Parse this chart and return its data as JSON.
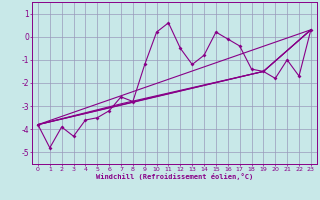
{
  "bg_color": "#c8e8e8",
  "line_color": "#880088",
  "grid_color": "#9999bb",
  "xlabel": "Windchill (Refroidissement éolien,°C)",
  "xlim": [
    -0.5,
    23.5
  ],
  "ylim": [
    -5.5,
    1.5
  ],
  "yticks": [
    1,
    0,
    -1,
    -2,
    -3,
    -4,
    -5
  ],
  "xticks": [
    0,
    1,
    2,
    3,
    4,
    5,
    6,
    7,
    8,
    9,
    10,
    11,
    12,
    13,
    14,
    15,
    16,
    17,
    18,
    19,
    20,
    21,
    22,
    23
  ],
  "series1_x": [
    0,
    1,
    2,
    3,
    4,
    5,
    6,
    7,
    8,
    9,
    10,
    11,
    12,
    13,
    14,
    15,
    16,
    17,
    18,
    19,
    20,
    21,
    22,
    23
  ],
  "series1_y": [
    -3.8,
    -4.8,
    -3.9,
    -4.3,
    -3.6,
    -3.5,
    -3.2,
    -2.6,
    -2.8,
    -1.2,
    0.2,
    0.6,
    -0.5,
    -1.2,
    -0.8,
    0.2,
    -0.1,
    -0.4,
    -1.4,
    -1.5,
    -1.8,
    -1.0,
    -1.7,
    0.3
  ],
  "series2_x": [
    0,
    23
  ],
  "series2_y": [
    -3.8,
    0.3
  ],
  "series3_x": [
    0,
    7,
    19,
    23
  ],
  "series3_y": [
    -3.8,
    -2.9,
    -1.5,
    0.3
  ],
  "series4_x": [
    0,
    9,
    19,
    23
  ],
  "series4_y": [
    -3.8,
    -2.7,
    -1.5,
    0.3
  ],
  "series5_x": [
    0,
    5,
    19,
    23
  ],
  "series5_y": [
    -3.8,
    -3.2,
    -1.5,
    0.3
  ]
}
